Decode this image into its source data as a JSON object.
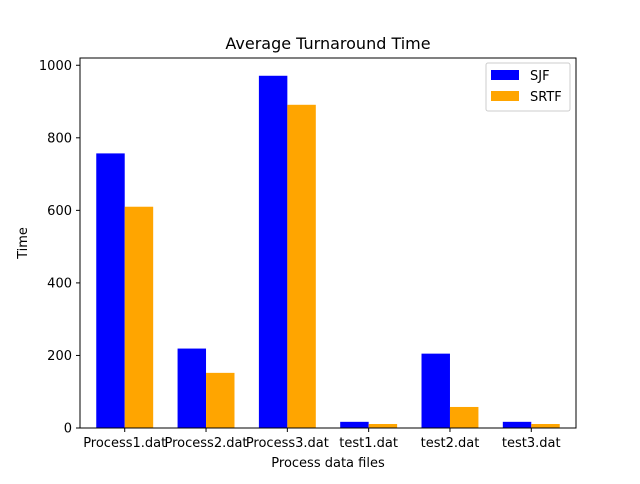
{
  "chart_data": {
    "type": "bar",
    "title": "Average Turnaround Time",
    "xlabel": "Process data files",
    "ylabel": "Time",
    "categories": [
      "Process1.dat",
      "Process2.dat",
      "Process3.dat",
      "test1.dat",
      "test2.dat",
      "test3.dat"
    ],
    "series": [
      {
        "name": "SJF",
        "color": "#0000ff",
        "values": [
          757,
          219,
          971,
          17,
          205,
          17
        ]
      },
      {
        "name": "SRTF",
        "color": "#ffa500",
        "values": [
          610,
          152,
          891,
          11,
          58,
          11
        ]
      }
    ],
    "ylim": [
      0,
      1020
    ],
    "yticks": [
      0,
      200,
      400,
      600,
      800,
      1000
    ],
    "grid": false,
    "legend_position": "top-right"
  }
}
